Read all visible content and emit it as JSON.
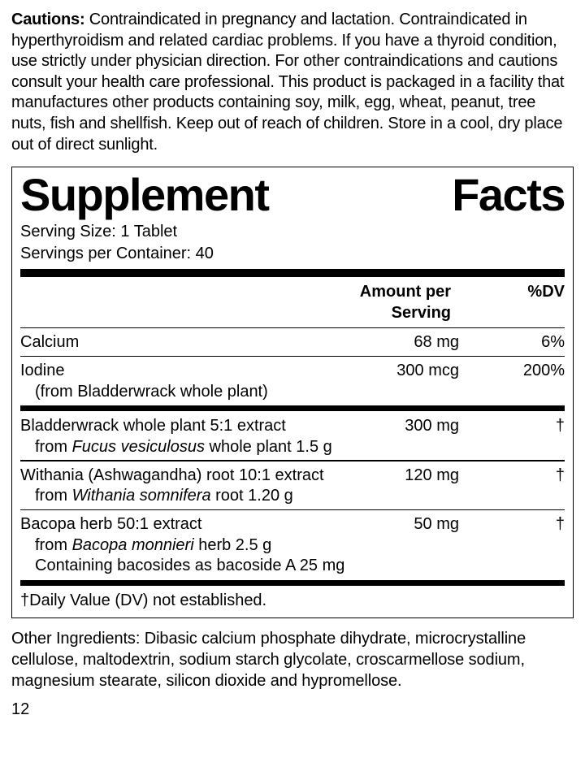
{
  "cautions": {
    "label": "Cautions:",
    "text": "Contraindicated in pregnancy and lactation. Contraindicated in hyperthyroidism and related cardiac problems. If you have a thyroid condition, use strictly under physician direction. For other contraindications and cautions consult your health care professional. This product is packaged in a facility that manufactures other products containing soy, milk, egg, wheat, peanut, tree nuts, fish and shellfish. Keep out of reach of children. Store in a cool, dry place out of direct sunlight."
  },
  "panel": {
    "title_left": "Supplement",
    "title_right": "Facts",
    "serving_size": "Serving Size: 1 Tablet",
    "servings_per": "Servings per Container: 40",
    "header_amount": "Amount per Serving",
    "header_dv": "%DV",
    "section1": [
      {
        "name": "Calcium",
        "amount": "68 mg",
        "dv": "6%",
        "subs": []
      },
      {
        "name": "Iodine",
        "amount": "300 mcg",
        "dv": "200%",
        "subs": [
          {
            "plain": "(from Bladderwrack whole plant)"
          }
        ]
      }
    ],
    "section2": [
      {
        "name": "Bladderwrack whole plant 5:1 extract",
        "amount": "300 mg",
        "dv": "†",
        "subs": [
          {
            "pre": "from ",
            "ital": "Fucus vesiculosus",
            "post": " whole plant 1.5 g"
          }
        ]
      },
      {
        "name": "Withania (Ashwagandha) root 10:1 extract",
        "amount": "120 mg",
        "dv": "†",
        "subs": [
          {
            "pre": "from ",
            "ital": "Withania somnifera",
            "post": " root 1.20 g"
          }
        ]
      },
      {
        "name": "Bacopa herb 50:1 extract",
        "amount": "50 mg",
        "dv": "†",
        "subs": [
          {
            "pre": "from ",
            "ital": "Bacopa monnieri",
            "post": " herb 2.5 g"
          },
          {
            "plain": "Containing bacosides as bacoside A 25 mg"
          }
        ]
      }
    ],
    "footnote": "†Daily Value (DV) not established."
  },
  "other": {
    "text": "Other Ingredients: Dibasic calcium phosphate dihydrate, microcrystalline cellulose, maltodextrin, sodium starch glycolate, croscarmellose sodium, magnesium stearate, silicon dioxide and hypromellose."
  },
  "page_number": "12"
}
